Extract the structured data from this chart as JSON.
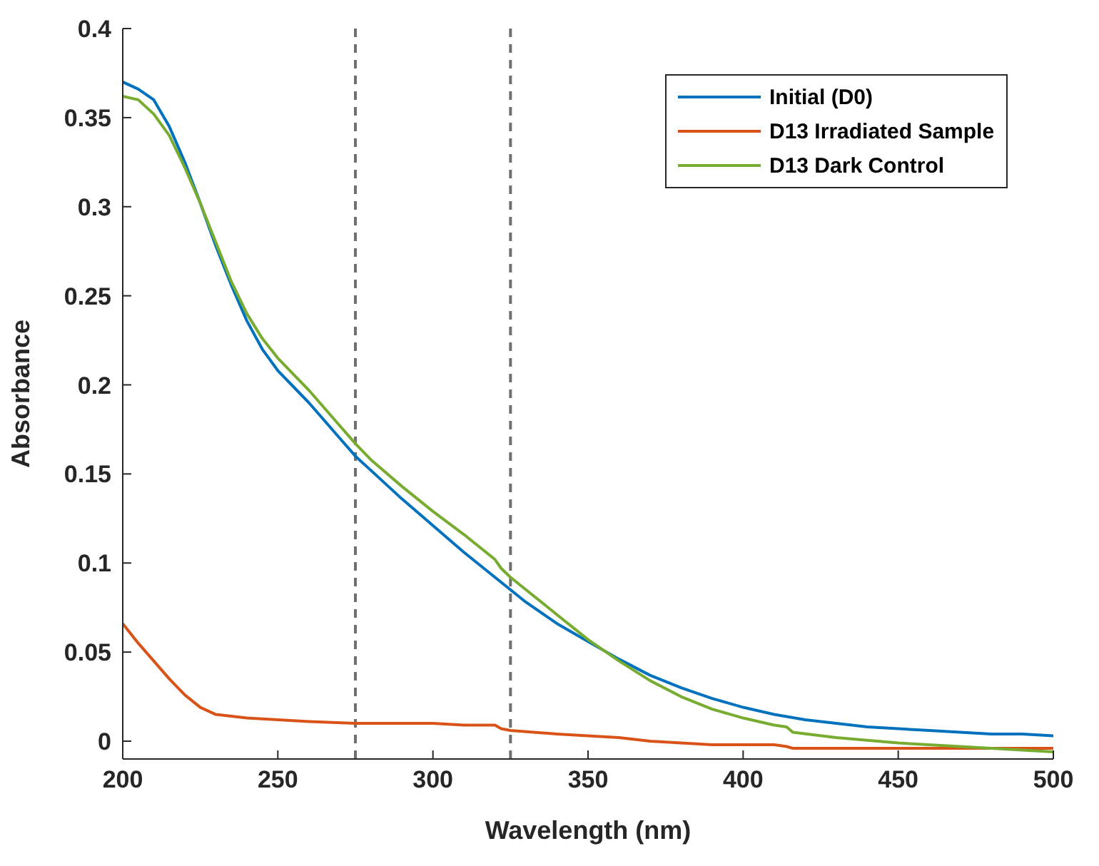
{
  "chart_data": {
    "type": "line",
    "xlabel": "Wavelength (nm)",
    "ylabel": "Absorbance",
    "xlim": [
      200,
      500
    ],
    "ylim": [
      -0.01,
      0.4
    ],
    "xticks": [
      200,
      250,
      300,
      350,
      400,
      450,
      500
    ],
    "yticks": [
      0,
      0.05,
      0.1,
      0.15,
      0.2,
      0.25,
      0.3,
      0.35,
      0.4
    ],
    "legend": "top right",
    "line_style": "solid",
    "series": [
      {
        "name": "Initial (D0)",
        "color": "#0072bd",
        "x": [
          200,
          205,
          210,
          215,
          220,
          225,
          230,
          235,
          240,
          245,
          250,
          255,
          260,
          265,
          270,
          275,
          280,
          290,
          300,
          310,
          320,
          325,
          330,
          340,
          350,
          360,
          370,
          380,
          390,
          400,
          410,
          420,
          430,
          440,
          450,
          460,
          470,
          480,
          490,
          500
        ],
        "values": [
          0.37,
          0.366,
          0.36,
          0.345,
          0.325,
          0.302,
          0.278,
          0.256,
          0.236,
          0.22,
          0.208,
          0.199,
          0.19,
          0.18,
          0.17,
          0.16,
          0.152,
          0.136,
          0.121,
          0.106,
          0.092,
          0.085,
          0.078,
          0.066,
          0.056,
          0.046,
          0.037,
          0.03,
          0.024,
          0.019,
          0.015,
          0.012,
          0.01,
          0.008,
          0.007,
          0.006,
          0.005,
          0.004,
          0.004,
          0.003
        ]
      },
      {
        "name": "D13 Irradiated Sample",
        "color": "#d95319",
        "x": [
          200,
          205,
          210,
          215,
          220,
          225,
          230,
          240,
          250,
          260,
          275,
          290,
          300,
          310,
          320,
          322,
          325,
          340,
          350,
          360,
          370,
          380,
          390,
          400,
          410,
          414,
          416,
          430,
          450,
          470,
          500
        ],
        "values": [
          0.066,
          0.055,
          0.045,
          0.035,
          0.026,
          0.019,
          0.015,
          0.013,
          0.012,
          0.011,
          0.01,
          0.01,
          0.01,
          0.009,
          0.009,
          0.007,
          0.006,
          0.004,
          0.003,
          0.002,
          0.0,
          -0.001,
          -0.002,
          -0.002,
          -0.002,
          -0.003,
          -0.004,
          -0.004,
          -0.004,
          -0.004,
          -0.004
        ]
      },
      {
        "name": "D13 Dark Control",
        "color": "#77ac30",
        "x": [
          200,
          205,
          210,
          215,
          220,
          225,
          230,
          235,
          240,
          245,
          250,
          255,
          260,
          265,
          270,
          275,
          280,
          290,
          300,
          310,
          320,
          322,
          325,
          330,
          340,
          350,
          360,
          370,
          380,
          390,
          400,
          410,
          414,
          416,
          430,
          450,
          470,
          490,
          500
        ],
        "values": [
          0.362,
          0.36,
          0.352,
          0.34,
          0.322,
          0.302,
          0.28,
          0.258,
          0.24,
          0.226,
          0.215,
          0.206,
          0.197,
          0.187,
          0.177,
          0.167,
          0.158,
          0.143,
          0.129,
          0.116,
          0.102,
          0.097,
          0.092,
          0.085,
          0.071,
          0.057,
          0.045,
          0.034,
          0.025,
          0.018,
          0.013,
          0.009,
          0.008,
          0.005,
          0.002,
          -0.001,
          -0.003,
          -0.005,
          -0.006
        ]
      }
    ],
    "ref_lines": [
      {
        "axis": "x",
        "value": 275,
        "color": "#707070",
        "line_style": "dashed"
      },
      {
        "axis": "x",
        "value": 325,
        "color": "#707070",
        "line_style": "dashed"
      }
    ]
  }
}
